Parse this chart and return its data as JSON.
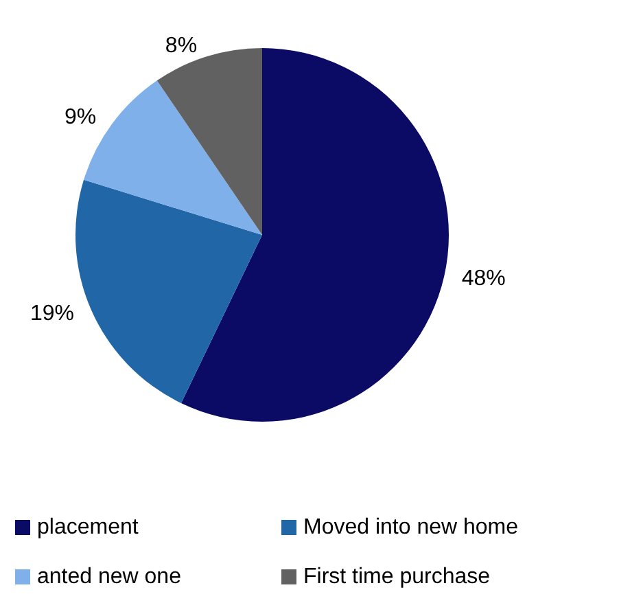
{
  "chart_data": {
    "type": "pie",
    "categories": [
      "placement",
      "Moved into new home",
      "anted new one",
      "First time purchase"
    ],
    "values": [
      48,
      19,
      9,
      8
    ],
    "colors": [
      "#0b0b66",
      "#2166a6",
      "#7fb0ea",
      "#616161"
    ],
    "value_labels": [
      "48%",
      "19%",
      "9%",
      "8%"
    ],
    "legend": "bottom"
  }
}
